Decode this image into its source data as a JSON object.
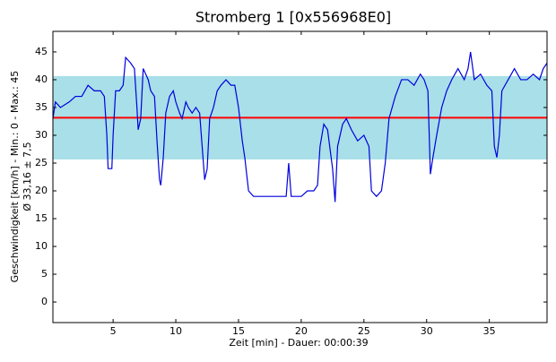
{
  "chart_data": {
    "type": "line",
    "title": "Stromberg 1 [0x556968E0]",
    "xlabel": "Zeit [min] - Dauer: 00:00:39",
    "ylabel": [
      "Geschwindigkeit [km/h] - Min.: 0 - Max.: 45",
      "Ø 33,16 ± 7,5"
    ],
    "xlim": [
      0.2,
      39.6
    ],
    "ylim": [
      -3.7,
      48.7
    ],
    "xticks": [
      5,
      10,
      15,
      20,
      25,
      30,
      35
    ],
    "yticks": [
      0,
      5,
      10,
      15,
      20,
      25,
      30,
      35,
      40,
      45
    ],
    "mean": 33.16,
    "mean_color": "#ff0000",
    "band": [
      25.66,
      40.66
    ],
    "band_color": "#a8dfe8",
    "series": [
      {
        "color": "#0000dd",
        "x": [
          0.2,
          0.4,
          0.8,
          1.5,
          2,
          2.5,
          3,
          3.5,
          4,
          4.3,
          4.5,
          4.6,
          4.9,
          5.0,
          5.2,
          5.5,
          5.8,
          6.0,
          6.4,
          6.7,
          6.9,
          7.0,
          7.2,
          7.4,
          7.6,
          7.8,
          8.0,
          8.3,
          8.5,
          8.7,
          8.8,
          9.0,
          9.2,
          9.5,
          9.8,
          10.0,
          10.3,
          10.5,
          10.8,
          11.0,
          11.3,
          11.6,
          11.9,
          12.1,
          12.3,
          12.5,
          12.7,
          13.0,
          13.3,
          13.6,
          14.0,
          14.4,
          14.7,
          15.0,
          15.3,
          15.5,
          15.8,
          16.2,
          17,
          18,
          18.8,
          19.0,
          19.2,
          20,
          20.5,
          21,
          21.3,
          21.5,
          21.8,
          22.1,
          22.5,
          22.7,
          22.9,
          23.3,
          23.6,
          24,
          24.5,
          25,
          25.4,
          25.6,
          26,
          26.4,
          26.7,
          27,
          27.5,
          28,
          28.5,
          29,
          29.5,
          29.8,
          30.1,
          30.3,
          30.5,
          30.8,
          31.2,
          31.6,
          32.0,
          32.5,
          33,
          33.3,
          33.5,
          33.8,
          34.3,
          34.8,
          35.2,
          35.4,
          35.6,
          35.8,
          36.0,
          36.5,
          37,
          37.5,
          38,
          38.5,
          39,
          39.3,
          39.6
        ],
        "values": [
          33,
          36,
          35,
          36,
          37,
          37,
          39,
          38,
          38,
          37,
          30,
          24,
          24,
          30,
          38,
          38,
          39,
          44,
          43,
          42,
          35,
          31,
          33,
          42,
          41,
          40,
          38,
          37,
          29,
          22,
          21,
          26,
          34,
          37,
          38,
          36,
          34,
          33,
          36,
          35,
          34,
          35,
          34,
          28,
          22,
          24,
          33,
          35,
          38,
          39,
          40,
          39,
          39,
          35,
          29,
          26,
          20,
          19,
          19,
          19,
          19,
          25,
          19,
          19,
          20,
          20,
          21,
          28,
          32,
          31,
          24,
          18,
          28,
          32,
          33,
          31,
          29,
          30,
          28,
          20,
          19,
          20,
          25,
          33,
          37,
          40,
          40,
          39,
          41,
          40,
          38,
          23,
          26,
          30,
          35,
          38,
          40,
          42,
          40,
          42,
          45,
          40,
          41,
          39,
          38,
          28,
          26,
          30,
          38,
          40,
          42,
          40,
          40,
          41,
          40,
          42,
          43
        ]
      }
    ]
  }
}
